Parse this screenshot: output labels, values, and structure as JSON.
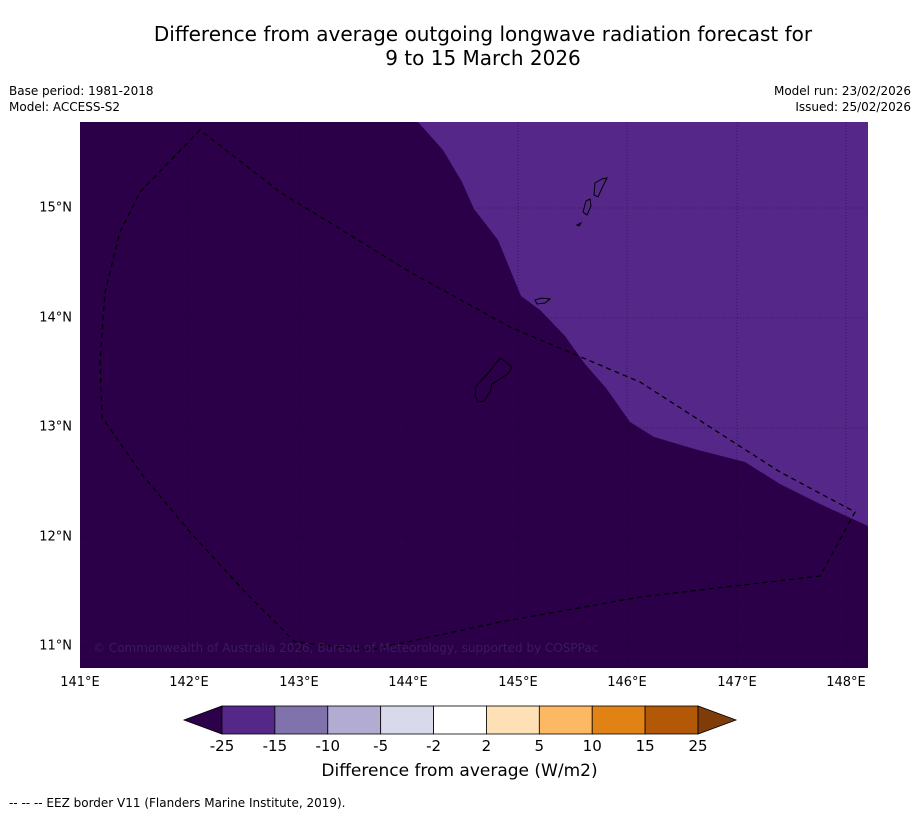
{
  "title": {
    "line1": "Difference from average outgoing longwave radiation forecast for",
    "line2": "9 to 15 March 2026"
  },
  "meta": {
    "base_period": "Base period: 1981-2018",
    "model": "Model: ACCESS-S2",
    "model_run": "Model run: 23/02/2026",
    "issued": "Issued: 25/02/2026"
  },
  "map": {
    "lat_labels": [
      "15°N",
      "14°N",
      "13°N",
      "12°N",
      "11°N"
    ],
    "lon_labels": [
      "141°E",
      "142°E",
      "143°E",
      "144°E",
      "145°E",
      "146°E",
      "147°E",
      "148°E"
    ],
    "copyright": "© Commonwealth of Australia 2026, Bureau of Meteorology, supported by COSPPac",
    "colors": {
      "region_dark": "#2b0049",
      "region_medium": "#542788",
      "coast": "#000000",
      "eez": "#000000"
    }
  },
  "colorbar": {
    "ticks": [
      "-25",
      "-15",
      "-10",
      "-5",
      "-2",
      "2",
      "5",
      "10",
      "15",
      "25"
    ],
    "colors": [
      "#2d004b",
      "#542788",
      "#8073ac",
      "#b2abd2",
      "#d8daeb",
      "#ffffff",
      "#fee0b6",
      "#fdb863",
      "#e08214",
      "#b35806",
      "#7f3b08"
    ],
    "label": "Difference from average (W/m2)"
  },
  "footer": {
    "legend": "--  --  -- EEZ border V11 (Flanders Marine Institute, 2019)."
  }
}
